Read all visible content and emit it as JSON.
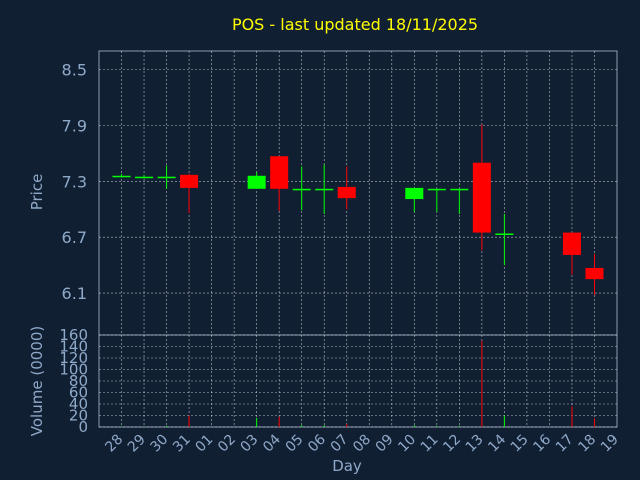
{
  "title": "POS - last updated 18/11/2025",
  "colors": {
    "background": "#111f33",
    "grid": "#ffffff",
    "axis_text": "#8fa9c8",
    "title_text": "#ffff00",
    "up": "#00ff00",
    "down": "#ff0000"
  },
  "chart_data": [
    {
      "type": "candlestick",
      "ylabel": "Price",
      "ylim": [
        5.65,
        8.7
      ],
      "yticks": [
        8.5,
        7.9,
        7.3,
        6.7,
        6.1
      ],
      "ytick_labels": [
        "8.5",
        "7.9",
        "7.3",
        "6.7",
        "6.1"
      ],
      "grid": true,
      "candles": [
        {
          "day": "28",
          "open": 7.36,
          "high": 7.38,
          "low": 7.34,
          "close": 7.36
        },
        {
          "day": "29",
          "open": 7.35,
          "high": 7.37,
          "low": 7.33,
          "close": 7.35
        },
        {
          "day": "30",
          "open": 7.35,
          "high": 7.47,
          "low": 7.22,
          "close": 7.35
        },
        {
          "day": "31",
          "open": 7.37,
          "high": 7.38,
          "low": 6.96,
          "close": 7.23
        },
        {
          "day": "03",
          "open": 7.22,
          "high": 7.4,
          "low": 7.22,
          "close": 7.36
        },
        {
          "day": "04",
          "open": 7.57,
          "high": 7.57,
          "low": 6.98,
          "close": 7.22
        },
        {
          "day": "05",
          "open": 7.22,
          "high": 7.46,
          "low": 6.99,
          "close": 7.22
        },
        {
          "day": "06",
          "open": 7.22,
          "high": 7.48,
          "low": 6.95,
          "close": 7.22
        },
        {
          "day": "07",
          "open": 7.24,
          "high": 7.46,
          "low": 7.0,
          "close": 7.12
        },
        {
          "day": "10",
          "open": 7.11,
          "high": 7.23,
          "low": 6.97,
          "close": 7.23
        },
        {
          "day": "11",
          "open": 7.22,
          "high": 7.22,
          "low": 6.97,
          "close": 7.22
        },
        {
          "day": "12",
          "open": 7.22,
          "high": 7.22,
          "low": 6.95,
          "close": 7.22
        },
        {
          "day": "13",
          "open": 7.5,
          "high": 7.91,
          "low": 6.56,
          "close": 6.75
        },
        {
          "day": "14",
          "open": 6.74,
          "high": 6.95,
          "low": 6.4,
          "close": 6.74
        },
        {
          "day": "17",
          "open": 6.75,
          "high": 6.75,
          "low": 6.3,
          "close": 6.51
        },
        {
          "day": "18",
          "open": 6.37,
          "high": 6.52,
          "low": 6.08,
          "close": 6.25
        }
      ]
    },
    {
      "type": "bar",
      "ylabel": "Volume (0000)",
      "xlabel": "Day",
      "ylim": [
        0,
        160
      ],
      "yticks": [
        0,
        20,
        40,
        60,
        80,
        100,
        120,
        140,
        160
      ],
      "ytick_labels": [
        "0",
        "20",
        "40",
        "60",
        "80",
        "100",
        "120",
        "140",
        "160"
      ],
      "categories": [
        "28",
        "29",
        "30",
        "31",
        "01",
        "02",
        "03",
        "04",
        "05",
        "06",
        "07",
        "08",
        "09",
        "10",
        "11",
        "12",
        "13",
        "14",
        "15",
        "16",
        "17",
        "18",
        "19"
      ],
      "bars": [
        {
          "day": "28",
          "value": 1,
          "direction": "up"
        },
        {
          "day": "29",
          "value": 1,
          "direction": "up"
        },
        {
          "day": "30",
          "value": 2,
          "direction": "up"
        },
        {
          "day": "31",
          "value": 20,
          "direction": "down"
        },
        {
          "day": "03",
          "value": 16,
          "direction": "up"
        },
        {
          "day": "04",
          "value": 18,
          "direction": "down"
        },
        {
          "day": "05",
          "value": 3,
          "direction": "up"
        },
        {
          "day": "06",
          "value": 3,
          "direction": "up"
        },
        {
          "day": "07",
          "value": 5,
          "direction": "down"
        },
        {
          "day": "10",
          "value": 3,
          "direction": "up"
        },
        {
          "day": "11",
          "value": 2,
          "direction": "up"
        },
        {
          "day": "12",
          "value": 2,
          "direction": "up"
        },
        {
          "day": "13",
          "value": 150,
          "direction": "down"
        },
        {
          "day": "14",
          "value": 20,
          "direction": "up"
        },
        {
          "day": "17",
          "value": 36,
          "direction": "down"
        },
        {
          "day": "18",
          "value": 15,
          "direction": "down"
        }
      ]
    }
  ]
}
